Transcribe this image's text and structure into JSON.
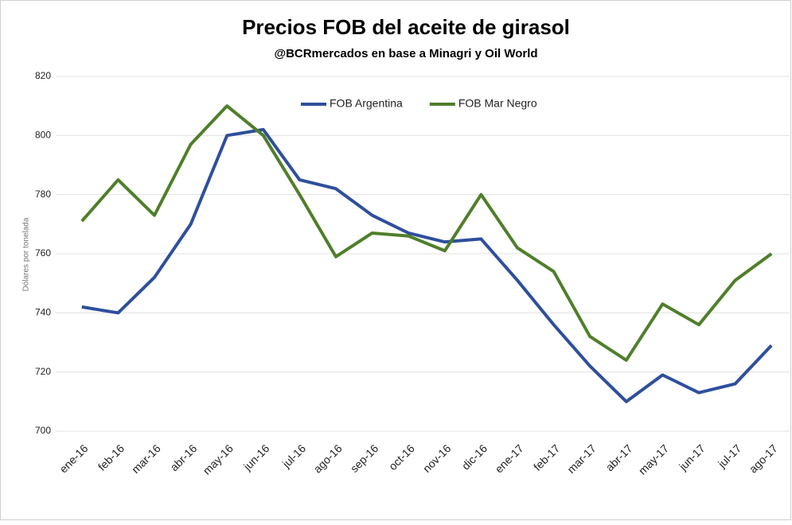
{
  "chart_data": {
    "type": "line",
    "title": "Precios FOB del aceite de girasol",
    "subtitle": "@BCRmercados  en base a Minagri y Oil World",
    "y_label": "Dólares por tonelada",
    "categories": [
      "ene-16",
      "feb-16",
      "mar-16",
      "abr-16",
      "may-16",
      "jun-16",
      "jul-16",
      "ago-16",
      "sep-16",
      "oct-16",
      "nov-16",
      "dic-16",
      "ene-17",
      "feb-17",
      "mar-17",
      "abr-17",
      "may-17",
      "jun-17",
      "jul-17",
      "ago-17"
    ],
    "series": [
      {
        "name": "FOB Argentina",
        "color": "#2e4f9c",
        "values": [
          742,
          740,
          752,
          770,
          800,
          802,
          785,
          782,
          773,
          767,
          764,
          765,
          751,
          736,
          722,
          710,
          719,
          713,
          716,
          729
        ]
      },
      {
        "name": "FOB Mar Negro",
        "color": "#4f7f2a",
        "values": [
          771,
          785,
          773,
          797,
          810,
          800,
          780,
          759,
          767,
          766,
          761,
          780,
          762,
          754,
          732,
          724,
          743,
          736,
          751,
          760
        ]
      }
    ],
    "ylim": [
      700,
      820
    ],
    "yticks": [
      700,
      720,
      740,
      760,
      780,
      800,
      820
    ],
    "grid": true,
    "legend": "top"
  }
}
